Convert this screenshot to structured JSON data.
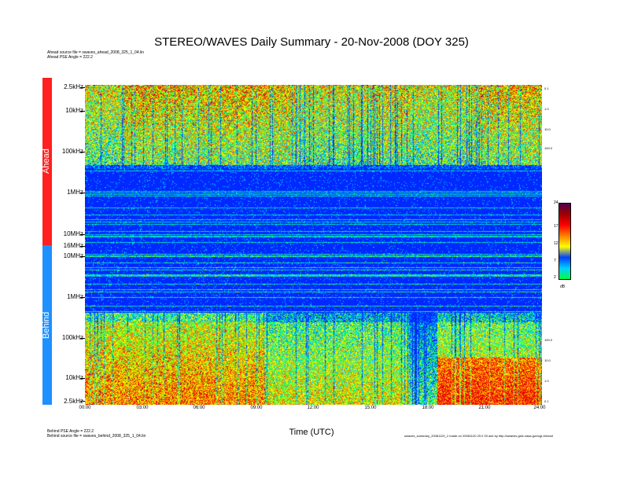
{
  "title": "STEREO/WAVES Daily Summary - 20-Nov-2008 (DOY 325)",
  "ahead_info": {
    "source_file": "Ahead source file = swaves_ahead_2008_325_1_04.lin",
    "pse_angle": "Ahead PSE Angle = 222.2"
  },
  "behind_info": {
    "pse_angle": "Behind PSE Angle = 222.2",
    "source_file": "Behind source file = swaves_behind_2008_325_1_04.lin"
  },
  "footer_note": "swaves_summary_20081120_2 made on 20081120 20:2 00 acb by http://swaves.gsfc.nasa.gov/cgi-bin/rad",
  "panels": {
    "ahead_label": "Ahead",
    "behind_label": "Behind",
    "ahead_colour": "#ff2020",
    "behind_colour": "#1e90ff"
  },
  "chart_data": {
    "type": "heatmap",
    "title": "STEREO/WAVES Daily Summary - 20-Nov-2008 (DOY 325)",
    "xlabel": "Time (UTC)",
    "ylabel": "",
    "x_ticks": [
      "00:00",
      "03:00",
      "06:00",
      "09:00",
      "12:00",
      "15:00",
      "18:00",
      "21:00",
      "24:00"
    ],
    "xlim_hours": [
      0,
      24
    ],
    "ahead_y_ticks": [
      "2.5kHz",
      "10kHz",
      "100kHz",
      "1MHz",
      "10MHz",
      "16MHz"
    ],
    "behind_y_ticks": [
      "10MHz",
      "1MHz",
      "100kHz",
      "10kHz",
      "2.5kHz"
    ],
    "ahead_right_ticks": [
      "0.1",
      "1.0",
      "10.0",
      "100.0"
    ],
    "behind_right_ticks": [
      "100.0",
      "10.0",
      "1.0",
      "0.1"
    ],
    "colorbar": {
      "ticks": [
        "24",
        "17",
        "12",
        "7",
        "2"
      ],
      "unit": "dB",
      "range": [
        2,
        24
      ]
    },
    "features": {
      "ahead_low_freq_activity_band": "2.5kHz-150kHz",
      "ahead_high_freq_background": "quiet (blue) above ~150kHz",
      "behind_intense_burst_hours": [
        18.5,
        24
      ],
      "behind_activity_lull_hours": [
        17,
        18.5
      ]
    }
  }
}
